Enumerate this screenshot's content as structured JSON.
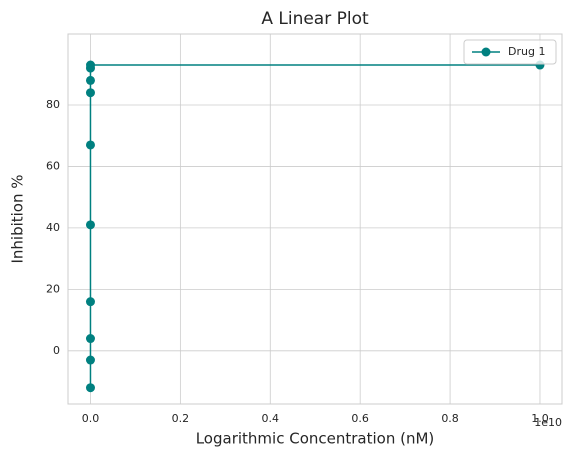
{
  "chart_data": {
    "type": "line",
    "title": "A Linear Plot",
    "x_label": "Logarithmic Concentration (nM)",
    "y_label": "Inhibition %",
    "x_offset_label": "1e10",
    "x": [
      0.001,
      0.01,
      0.1,
      1,
      10,
      100,
      1000,
      10000,
      100000,
      1000000,
      10000000000
    ],
    "series": [
      {
        "name": "Drug 1",
        "color": "#008080",
        "values": [
          -12,
          -3,
          4,
          16,
          41,
          67,
          84,
          88,
          92,
          93,
          93
        ]
      }
    ],
    "xlim": [
      -500000000,
      10490000000
    ],
    "xticks": [
      {
        "value": 0,
        "label": "0.0"
      },
      {
        "value": 2000000000,
        "label": "0.2"
      },
      {
        "value": 4000000000,
        "label": "0.4"
      },
      {
        "value": 6000000000,
        "label": "0.6"
      },
      {
        "value": 8000000000,
        "label": "0.8"
      },
      {
        "value": 10000000000,
        "label": "1.0"
      }
    ],
    "ylim": [
      -17.3,
      103.1
    ],
    "yticks": [
      0,
      20,
      40,
      60,
      80
    ],
    "grid": true,
    "legend": "upper right"
  }
}
